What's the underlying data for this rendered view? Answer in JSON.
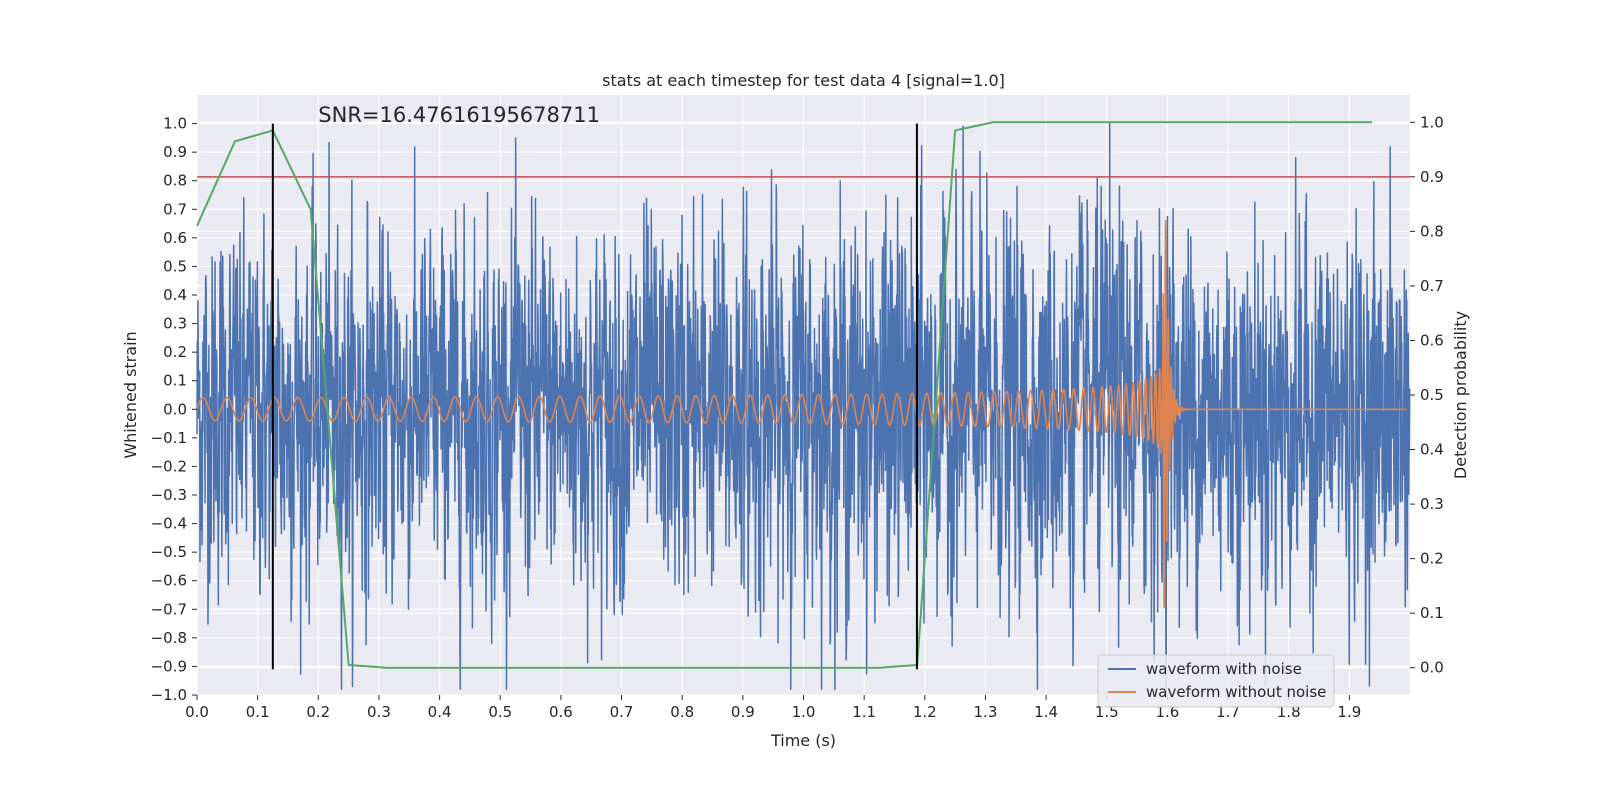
{
  "chart_data": {
    "type": "line",
    "title": "stats at each timestep for test data 4 [signal=1.0]",
    "xlabel": "Time (s)",
    "ylabel_left": "Whitened strain",
    "ylabel_right": "Detection probability",
    "xlim": [
      0.0,
      2.0
    ],
    "ylim_left": [
      -1.0,
      1.1
    ],
    "ylim_right": [
      -0.05,
      1.05
    ],
    "x_ticks": [
      0.0,
      0.1,
      0.2,
      0.3,
      0.4,
      0.5,
      0.6,
      0.7,
      0.8,
      0.9,
      1.0,
      1.1,
      1.2,
      1.3,
      1.4,
      1.5,
      1.6,
      1.7,
      1.8,
      1.9
    ],
    "y_ticks_left": [
      1.0,
      0.9,
      0.8,
      0.7,
      0.6,
      0.5,
      0.4,
      0.3,
      0.2,
      0.1,
      0.0,
      -0.1,
      -0.2,
      -0.3,
      -0.4,
      -0.5,
      -0.6,
      -0.7,
      -0.8,
      -0.9,
      -1.0
    ],
    "y_ticks_right": [
      1.0,
      0.9,
      0.8,
      0.7,
      0.6,
      0.5,
      0.4,
      0.3,
      0.2,
      0.1,
      0.0
    ],
    "grid": true,
    "legend_position": "lower-right",
    "annotation": "SNR=16.47616195678711",
    "threshold_line": {
      "axis": "right",
      "y": 0.9,
      "color": "#c44e52"
    },
    "vertical_markers": [
      {
        "x": 0.125,
        "y_range": [
          -0.91,
          1.0
        ],
        "color": "#000000"
      },
      {
        "x": 1.187,
        "y_range": [
          -0.91,
          1.0
        ],
        "color": "#000000"
      }
    ],
    "series": [
      {
        "name": "waveform with noise",
        "axis": "left",
        "color": "#4c72b0",
        "sample_rate": 2048,
        "duration": 2.0,
        "amplitude_envelope": {
          "x": [
            0.0,
            1.5,
            1.9,
            2.0
          ],
          "y": [
            0.33,
            0.36,
            0.34,
            0.34
          ]
        },
        "spike": {
          "x": 1.505,
          "y": 1.0
        }
      },
      {
        "name": "waveform without noise",
        "axis": "left",
        "color": "#dd8452",
        "chirp": {
          "start": 0.0,
          "merger": 1.597,
          "f_start": 25,
          "f_merger": 220,
          "amp_start": 0.04,
          "amp_peak": 0.66,
          "amp_min": -0.7,
          "ringdown_end": 1.63
        }
      },
      {
        "name": "detection probability",
        "axis": "right",
        "color": "#55a868",
        "x": [
          0.0,
          0.0625,
          0.125,
          0.1875,
          0.25,
          0.3125,
          0.375,
          0.4375,
          0.5,
          0.5625,
          0.625,
          0.6875,
          0.75,
          0.8125,
          0.875,
          0.9375,
          1.0,
          1.0625,
          1.125,
          1.1875,
          1.25,
          1.3125,
          1.375,
          1.4375,
          1.5,
          1.5625,
          1.625,
          1.6875,
          1.75,
          1.8125,
          1.875,
          1.9375
        ],
        "y": [
          0.81,
          0.965,
          0.985,
          0.84,
          0.005,
          0.0,
          0.0,
          0.0,
          0.0,
          0.0,
          0.0,
          0.0,
          0.0,
          0.0,
          0.0,
          0.0,
          0.0,
          0.0,
          0.0,
          0.005,
          0.985,
          1.0,
          1.0,
          1.0,
          1.0,
          1.0,
          1.0,
          1.0,
          1.0,
          1.0,
          1.0,
          1.0
        ]
      }
    ]
  }
}
